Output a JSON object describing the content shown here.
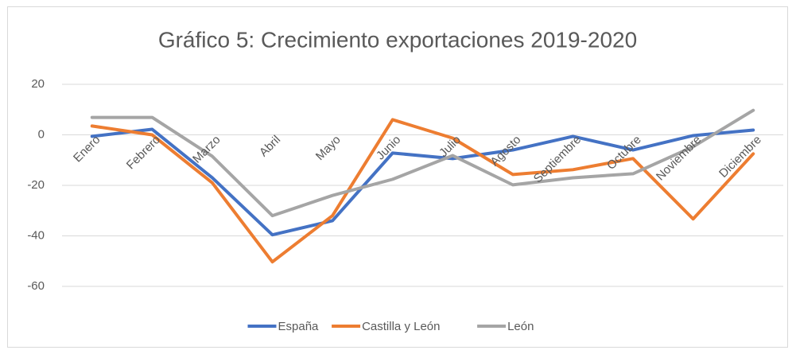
{
  "chart_data": {
    "type": "line",
    "title": "Gráfico 5: Crecimiento exportaciones 2019-2020",
    "categories": [
      "Enero",
      "Febrero",
      "Marzo",
      "Abril",
      "Mayo",
      "Junio",
      "Julio",
      "Agosto",
      "Septiembre",
      "Octubre",
      "Noviembre",
      "Diciembre"
    ],
    "series": [
      {
        "name": "España",
        "color": "#4472c4",
        "values": [
          -0.6,
          2.2,
          -17,
          -39.6,
          -34,
          -7.2,
          -9.4,
          -6,
          -0.6,
          -6,
          -0.3,
          1.9
        ]
      },
      {
        "name": "Castilla y León",
        "color": "#ed7d31",
        "values": [
          3.5,
          0,
          -19,
          -50.3,
          -32,
          6,
          -1.3,
          -15.7,
          -13.8,
          -9.4,
          -33.3,
          -7.5
        ]
      },
      {
        "name": "León",
        "color": "#a5a5a5",
        "values": [
          6.9,
          6.9,
          -8.5,
          -32,
          -24,
          -17.6,
          -8.2,
          -19.8,
          -17,
          -15.4,
          -4.7,
          9.7
        ]
      }
    ],
    "ylim": [
      -60,
      20
    ],
    "yticks": [
      -60,
      -40,
      -20,
      0,
      20
    ],
    "grid": true,
    "legend": "bottom"
  }
}
